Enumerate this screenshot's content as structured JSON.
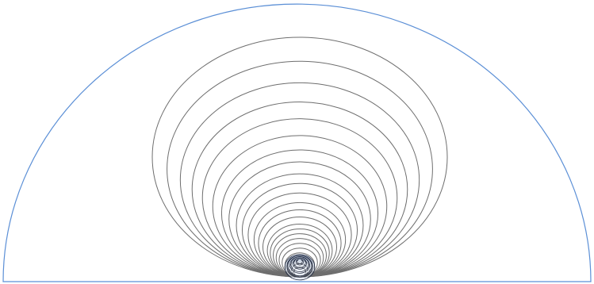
{
  "diagram": {
    "colors": {
      "background": "#ffffff",
      "boundary": "#5b8fd6",
      "contour": "#6e6e6e",
      "core": "#1f2a44",
      "core_highlight": "#cfd9e6"
    },
    "contour_ratios": [
      1,
      0.9,
      0.81,
      0.73,
      0.66,
      0.59,
      0.53,
      0.48,
      0.43,
      0.39,
      0.35,
      0.31,
      0.28,
      0.25,
      0.22,
      0.2,
      0.18,
      0.16,
      0.14,
      0.12,
      0.1,
      0.085,
      0.07,
      0.055,
      0.04
    ]
  }
}
